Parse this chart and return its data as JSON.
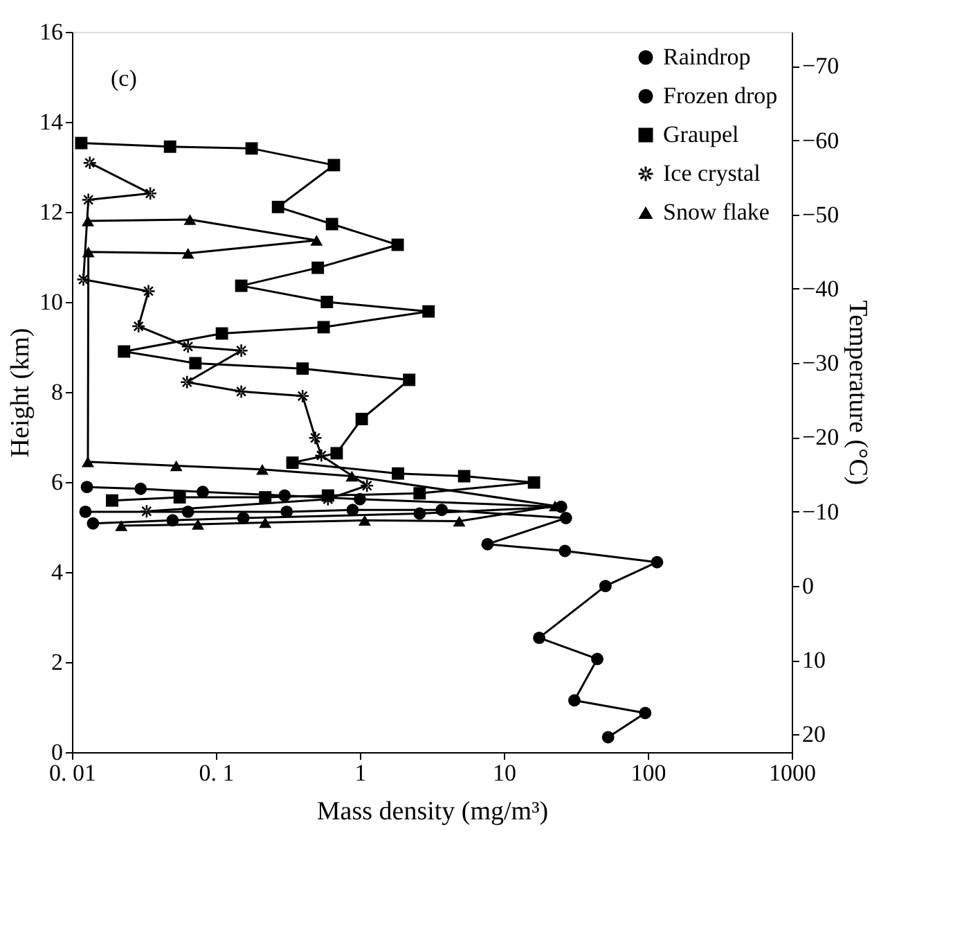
{
  "chart_data": {
    "type": "line",
    "xlabel": "Mass density (mg/m³)",
    "ylabel": "Height (km)",
    "y2label": "Temperature (°C)",
    "annotations": [
      "(c)"
    ],
    "log": "x",
    "grid": false,
    "legend": "top right",
    "line_style": "solid",
    "xlim": [
      0.01,
      1000
    ],
    "xticks": [
      {
        "value": 0.01,
        "label": "0. 01"
      },
      {
        "value": 0.1,
        "label": "0. 1"
      },
      1,
      10,
      100,
      1000
    ],
    "y2lim": [
      22.4,
      -74.6
    ],
    "y2ticks": [
      -70,
      -60,
      -50,
      -40,
      -30,
      -20,
      -10,
      0,
      10,
      20
    ],
    "ylim": [
      0,
      16
    ],
    "yticks": [
      0,
      2,
      4,
      6,
      8,
      10,
      12,
      14,
      16
    ],
    "series": [
      {
        "name": "Raindrop",
        "color": "#000000",
        "marker": "circle",
        "x": [
          0.0124,
          0.064,
          0.31,
          0.89,
          3.7,
          27,
          7.7,
          26.6,
          116,
          50.8,
          17.6,
          44.6,
          30.9,
          96,
          53
        ],
        "values": [
          5.34,
          5.34,
          5.34,
          5.38,
          5.38,
          5.2,
          4.62,
          4.47,
          4.22,
          3.69,
          2.54,
          2.07,
          1.15,
          0.87,
          0.33
        ]
      },
      {
        "name": "Frozen drop",
        "color": "#000000",
        "marker": "circle",
        "x": [
          0.0127,
          0.03,
          0.081,
          0.3,
          1.0,
          25,
          2.6,
          0.155,
          0.05,
          0.014
        ],
        "values": [
          5.89,
          5.85,
          5.78,
          5.7,
          5.62,
          5.45,
          5.3,
          5.2,
          5.15,
          5.08
        ]
      },
      {
        "name": "Graupel",
        "color": "#000000",
        "marker": "square",
        "x": [
          0.0116,
          0.048,
          0.177,
          0.66,
          0.27,
          0.64,
          1.83,
          0.51,
          0.15,
          0.59,
          3.0,
          0.56,
          0.11,
          0.023,
          0.072,
          0.4,
          2.2,
          1.03,
          0.69,
          0.34,
          1.84,
          5.3,
          16.2,
          2.6,
          0.6,
          0.22,
          0.056,
          0.019
        ],
        "values": [
          13.53,
          13.45,
          13.41,
          13.04,
          12.11,
          11.73,
          11.27,
          10.76,
          10.36,
          10.0,
          9.79,
          9.44,
          9.3,
          8.9,
          8.64,
          8.52,
          8.27,
          7.4,
          6.64,
          6.43,
          6.19,
          6.13,
          5.99,
          5.75,
          5.7,
          5.66,
          5.66,
          5.59
        ]
      },
      {
        "name": "Ice crystal",
        "color": "#000000",
        "marker": "cross",
        "x": [
          0.0133,
          0.035,
          0.013,
          0.012,
          0.034,
          0.029,
          0.064,
          0.15,
          0.063,
          0.15,
          0.4,
          0.49,
          0.54,
          1.12,
          0.6,
          0.033
        ],
        "values": [
          13.09,
          12.41,
          12.27,
          10.5,
          10.24,
          9.46,
          9.01,
          8.92,
          8.22,
          8.01,
          7.91,
          6.98,
          6.59,
          5.92,
          5.62,
          5.35
        ]
      },
      {
        "name": "Snow flake",
        "color": "#000000",
        "marker": "triangle",
        "x": [
          0.0129,
          0.066,
          0.5,
          0.064,
          0.013,
          0.0129,
          0.053,
          0.21,
          0.88,
          22.7,
          4.9,
          1.08,
          0.22,
          0.075,
          0.022
        ],
        "values": [
          11.8,
          11.83,
          11.37,
          11.08,
          11.11,
          6.45,
          6.36,
          6.28,
          6.13,
          5.47,
          5.13,
          5.15,
          5.1,
          5.06,
          5.03
        ]
      }
    ]
  }
}
